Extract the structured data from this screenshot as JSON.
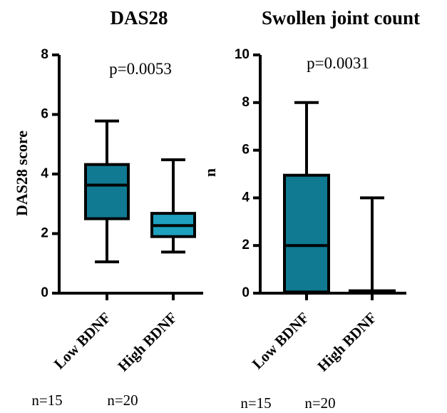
{
  "chart_data": [
    {
      "type": "box",
      "title": "DAS28",
      "ylabel": "DAS28 score",
      "ylim": [
        0,
        8
      ],
      "yticks": [
        0,
        2,
        4,
        6,
        8
      ],
      "annotation": "p=0.0053",
      "categories": [
        "Low BDNF",
        "High BDNF"
      ],
      "counts": [
        "n=15",
        "n=20"
      ],
      "boxes": [
        {
          "min": 1.05,
          "q1": 2.5,
          "median": 3.63,
          "q3": 4.32,
          "max": 5.78
        },
        {
          "min": 1.38,
          "q1": 1.9,
          "median": 2.27,
          "q3": 2.68,
          "max": 4.48
        }
      ],
      "colors": [
        "#107a92",
        "#1ea1be"
      ]
    },
    {
      "type": "box",
      "title": "Swollen joint count",
      "ylabel": "n",
      "ylim": [
        0,
        10
      ],
      "yticks": [
        0,
        2,
        4,
        6,
        8,
        10
      ],
      "annotation": "p=0.0031",
      "categories": [
        "Low BDNF",
        "High BDNF"
      ],
      "counts": [
        "n=15",
        "n=20"
      ],
      "boxes": [
        {
          "min": 0,
          "q1": 0.05,
          "median": 2,
          "q3": 4.95,
          "max": 8
        },
        {
          "min": 0,
          "q1": 0,
          "median": 0.05,
          "q3": 0.1,
          "max": 4
        }
      ],
      "colors": [
        "#107a92",
        "#1ea1be"
      ]
    }
  ]
}
